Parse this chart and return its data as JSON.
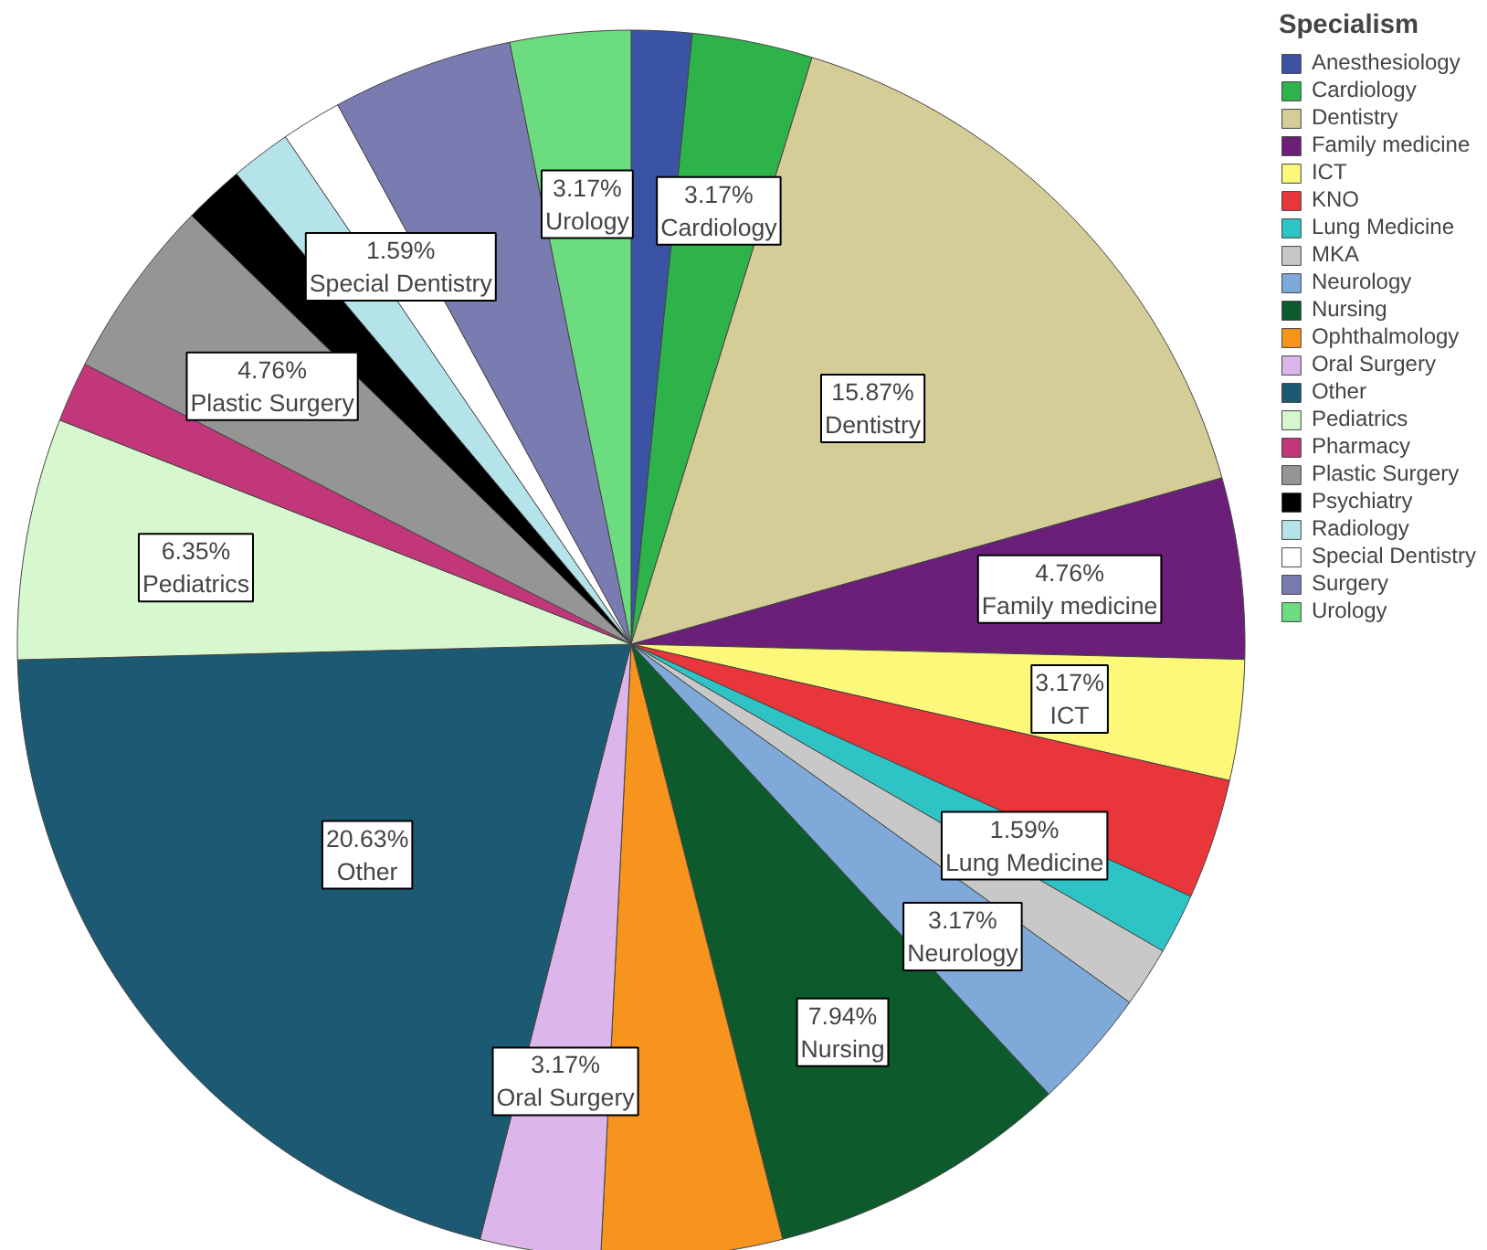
{
  "chart_data": {
    "type": "pie",
    "legend_title": "Specialism",
    "legend": "top right",
    "categories": [
      "Anesthesiology",
      "Cardiology",
      "Dentistry",
      "Family medicine",
      "ICT",
      "KNO",
      "Lung Medicine",
      "MKA",
      "Neurology",
      "Nursing",
      "Ophthalmology",
      "Oral Surgery",
      "Other",
      "Pediatrics",
      "Pharmacy",
      "Plastic Surgery",
      "Psychiatry",
      "Radiology",
      "Special Dentistry",
      "Surgery",
      "Urology"
    ],
    "values": [
      1.59,
      3.17,
      15.87,
      4.76,
      3.17,
      3.17,
      1.59,
      1.59,
      3.17,
      7.94,
      4.76,
      3.17,
      20.63,
      6.35,
      1.59,
      4.76,
      1.59,
      1.59,
      1.59,
      4.76,
      3.17
    ],
    "colors": [
      "#3a53a4",
      "#2db34a",
      "#d4cd98",
      "#6b1f78",
      "#fbf87a",
      "#e8363a",
      "#2ec4c6",
      "#c8c8c8",
      "#7fa9d9",
      "#0d5a2c",
      "#f7941d",
      "#dcb5ea",
      "#1b5a72",
      "#d7f7cf",
      "#c2367a",
      "#959595",
      "#000000",
      "#b4e4ea",
      "#ffffff",
      "#7a7bb0",
      "#6cdc80"
    ],
    "value_labels": [
      null,
      "3.17%",
      "15.87%",
      "4.76%",
      "3.17%",
      null,
      "1.59%",
      null,
      "3.17%",
      "7.94%",
      null,
      "3.17%",
      "20.63%",
      "6.35%",
      null,
      "4.76%",
      null,
      null,
      "1.59%",
      null,
      "3.17%"
    ]
  }
}
